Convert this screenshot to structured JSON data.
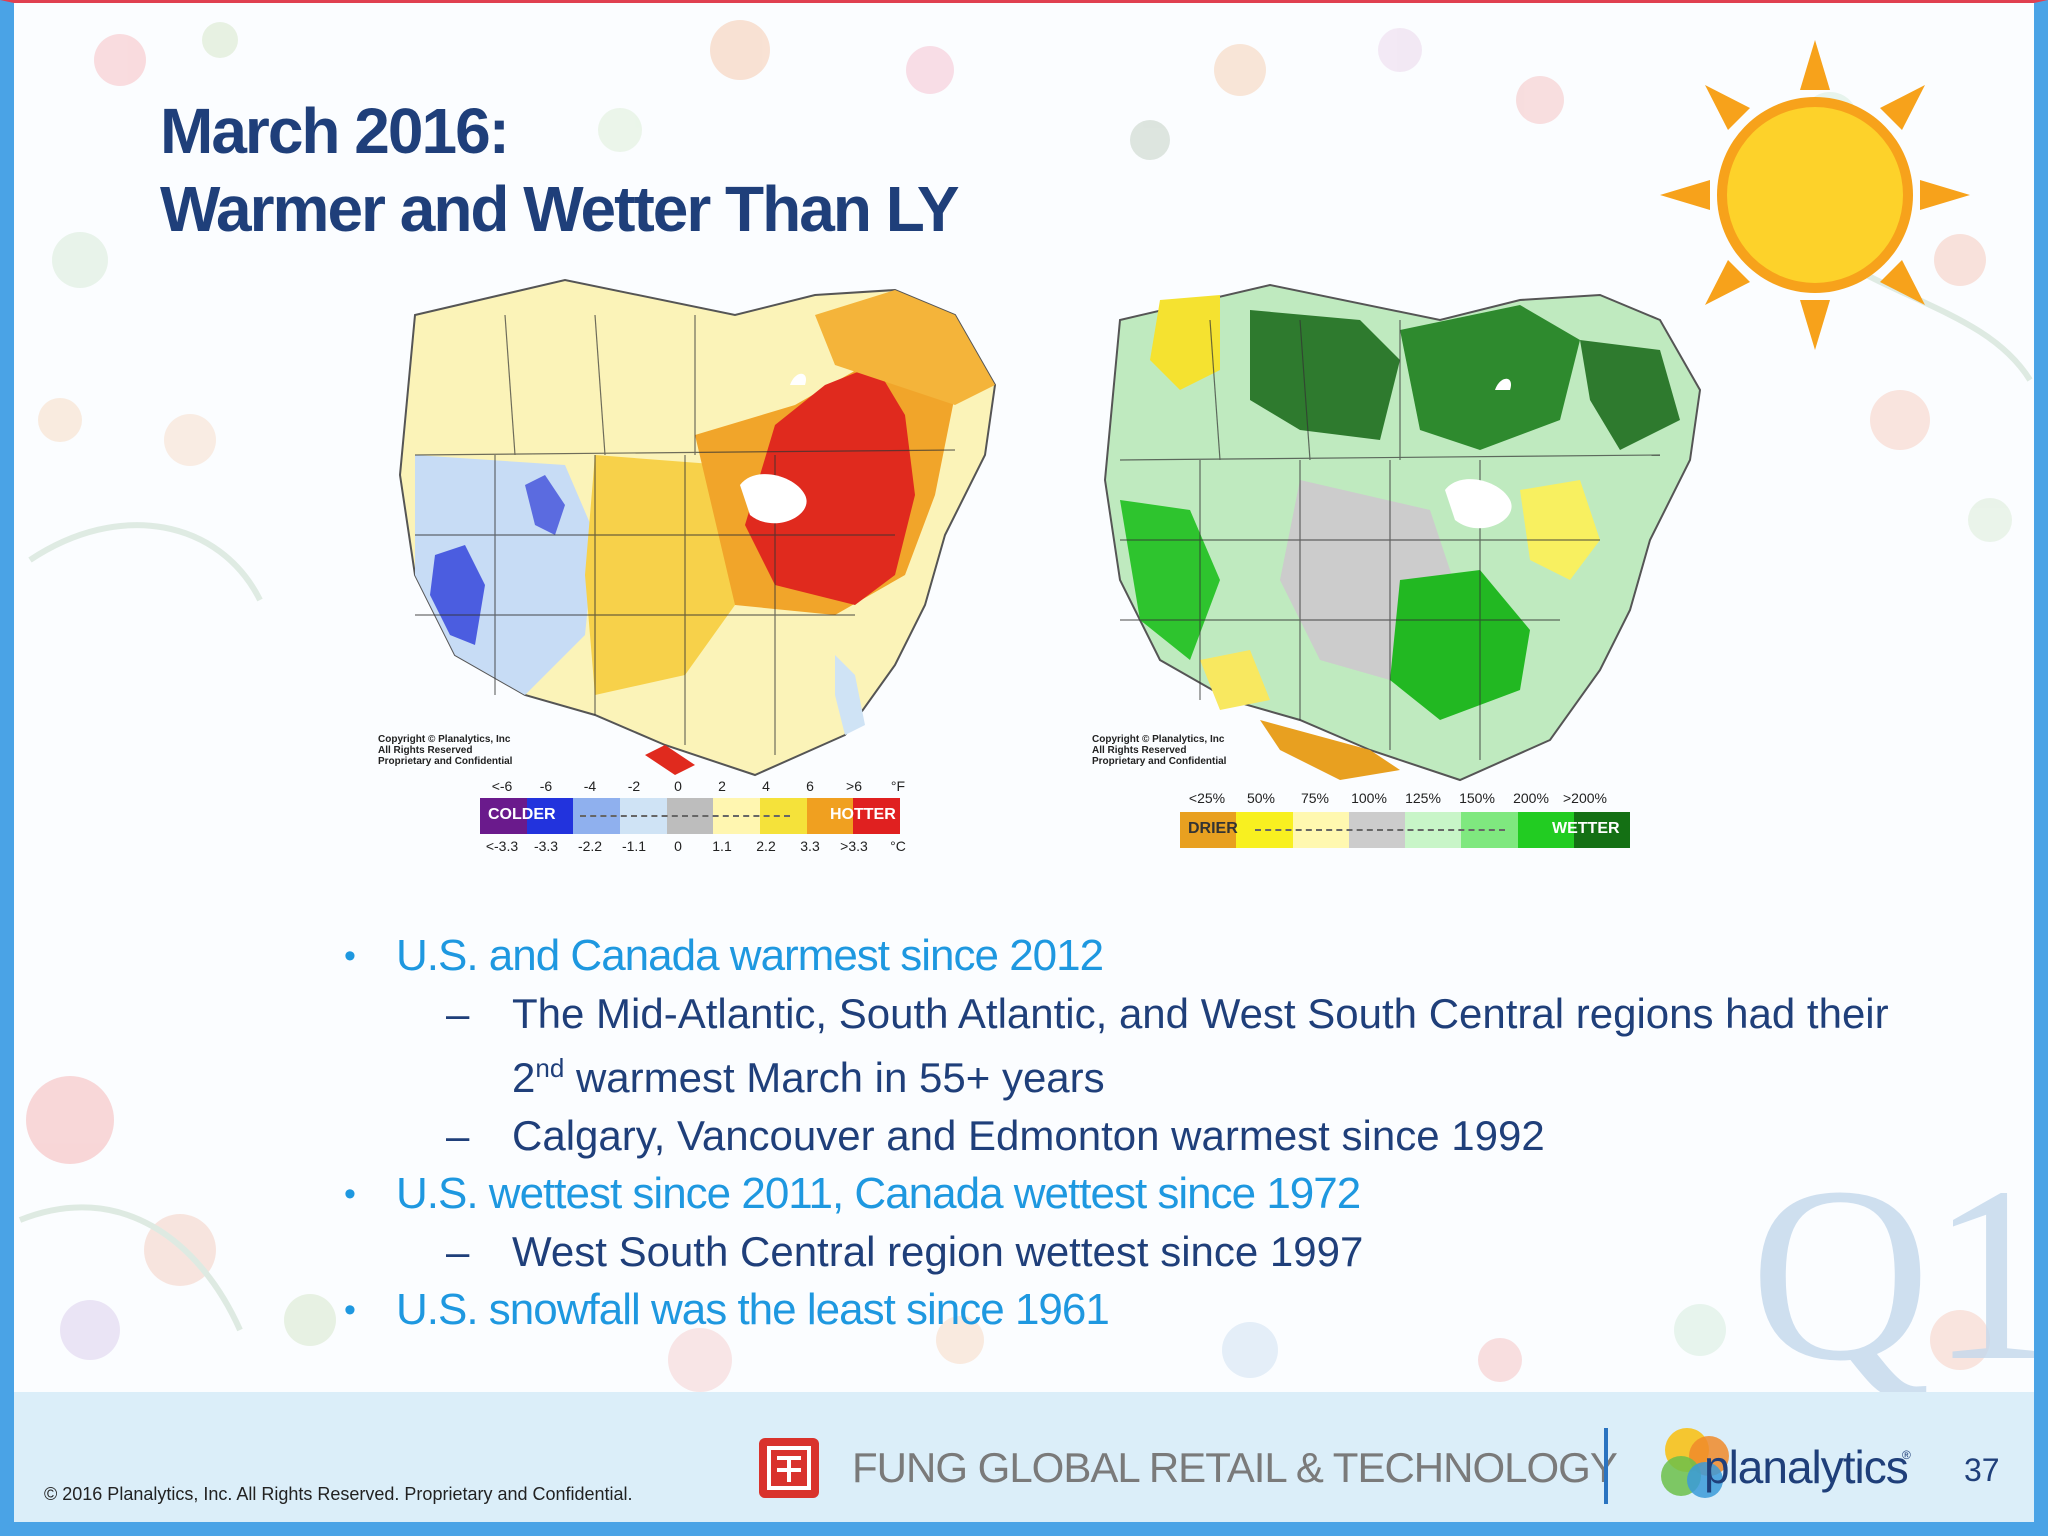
{
  "title": {
    "line1": "March 2016:",
    "line2": "Warmer and Wetter Than LY"
  },
  "maps": [
    {
      "copyright_lines": [
        "Copyright © Planalytics, Inc",
        "All Rights Reserved",
        "Proprietary and Confidential"
      ],
      "legend": {
        "top_ticks": [
          "<-6",
          "-6",
          "-4",
          "-2",
          "0",
          "2",
          "4",
          "6",
          ">6",
          "°F"
        ],
        "bottom_ticks": [
          "<-3.3",
          "-3.3",
          "-2.2",
          "-1.1",
          "0",
          "1.1",
          "2.2",
          "3.3",
          ">3.3",
          "°C"
        ],
        "left_label": "COLDER",
        "right_label": "HOTTER",
        "colors": [
          "#6a1a8c",
          "#2233dd",
          "#8fb0ee",
          "#cfe3f5",
          "#bdbdbd",
          "#fff6b0",
          "#f5e23a",
          "#f0a020",
          "#e02020"
        ]
      }
    },
    {
      "copyright_lines": [
        "Copyright © Planalytics, Inc",
        "All Rights Reserved",
        "Proprietary and Confidential"
      ],
      "legend": {
        "top_ticks": [
          "<25%",
          "50%",
          "75%",
          "100%",
          "125%",
          "150%",
          "200%",
          ">200%"
        ],
        "left_label": "DRIER",
        "right_label": "WETTER",
        "colors": [
          "#e8a020",
          "#f8f020",
          "#fff8b0",
          "#cccccc",
          "#c8f5c8",
          "#7fe87f",
          "#22cc22",
          "#147014"
        ]
      }
    }
  ],
  "bullets": [
    {
      "level": 1,
      "text": "U.S. and Canada warmest since 2012"
    },
    {
      "level": 2,
      "text": "The Mid-Atlantic, South Atlantic, and West South Central regions had their",
      "text_b": "2",
      "sup": "nd",
      "text_c": " warmest March in 55+ years"
    },
    {
      "level": 2,
      "text": "Calgary, Vancouver and Edmonton warmest since 1992"
    },
    {
      "level": 1,
      "text": "U.S. wettest since 2011, Canada wettest since 1972"
    },
    {
      "level": 2,
      "text": "West South Central region wettest since 1997"
    },
    {
      "level": 1,
      "text": "U.S. snowfall was the least since 1961"
    }
  ],
  "dash": "–",
  "watermark": "Q1",
  "footer": {
    "copyright": "© 2016 Planalytics, Inc. All Rights Reserved. Proprietary and Confidential.",
    "fung_text": "FUNG GLOBAL RETAIL & TECHNOLOGY",
    "planalytics_text": "planalytics",
    "trademark": "®",
    "page_number": "37"
  },
  "icons": [
    "sun-icon",
    "fung-logo-icon",
    "planalytics-logo-icon"
  ]
}
